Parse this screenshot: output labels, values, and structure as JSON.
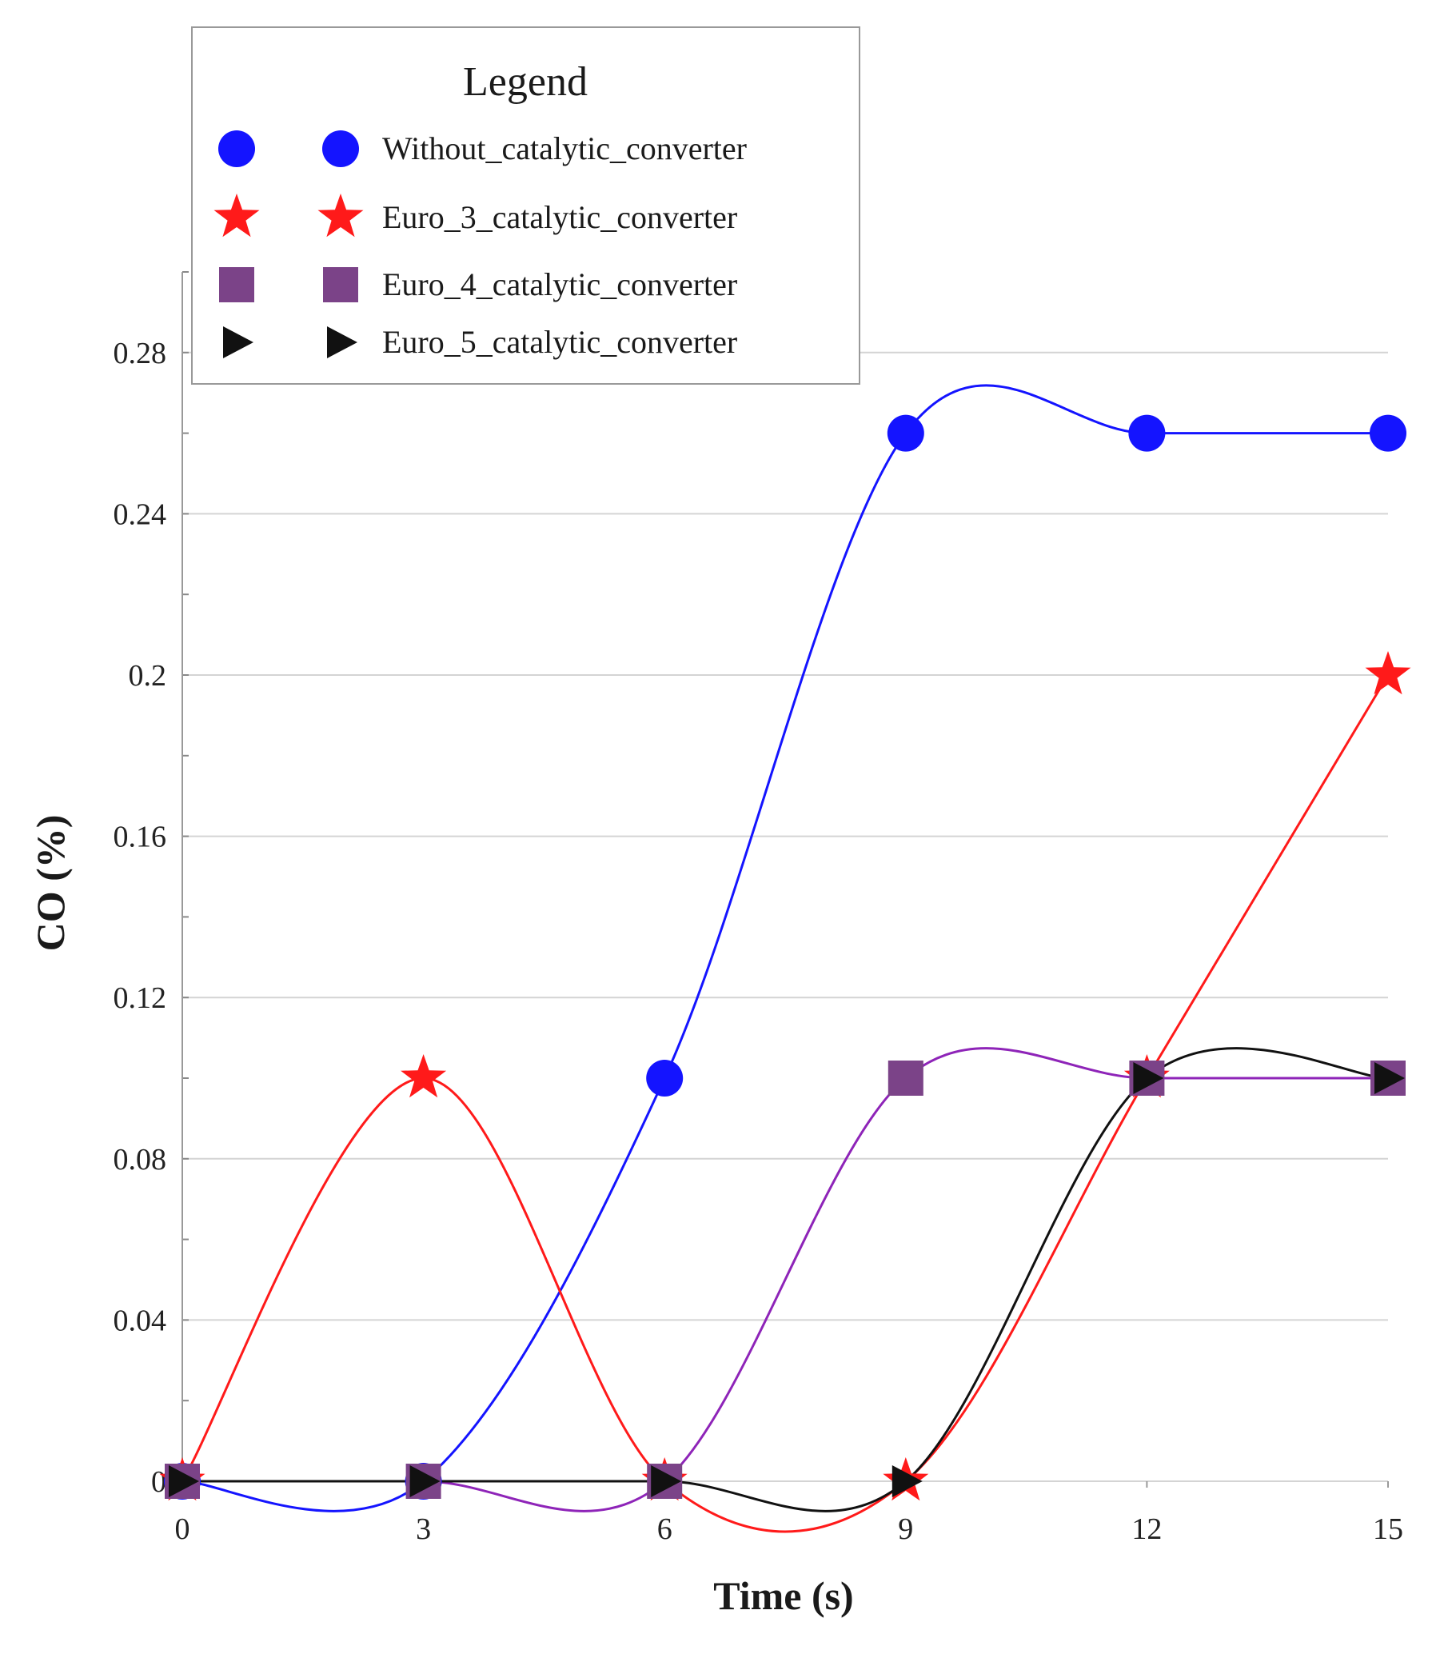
{
  "chart_data": {
    "type": "line",
    "title": "",
    "xlabel": "Time (s)",
    "ylabel": "CO (%)",
    "x": [
      0,
      3,
      6,
      9,
      12,
      15
    ],
    "xticks": [
      "0",
      "3",
      "6",
      "9",
      "12",
      "15"
    ],
    "yticks": [
      "0",
      "0.04",
      "0.08",
      "0.12",
      "0.16",
      "0.2",
      "0.24",
      "0.28"
    ],
    "xlim": [
      0,
      15
    ],
    "ylim": [
      0,
      0.3
    ],
    "grid": true,
    "legend": {
      "title": "Legend",
      "placement": "top-left"
    },
    "series": [
      {
        "name": "Without_catalytic_converter",
        "color": "#1414ff",
        "marker": "circle",
        "values": [
          0,
          0,
          0.1,
          0.26,
          0.26,
          0.26
        ]
      },
      {
        "name": "Euro_3_catalytic_converter",
        "color": "#ff1a1a",
        "marker": "star",
        "values": [
          0,
          0.1,
          0,
          0,
          0.1,
          0.2
        ]
      },
      {
        "name": "Euro_4_catalytic_converter",
        "color": "#8e24b8",
        "markerColor": "#7b4388",
        "marker": "square",
        "values": [
          0,
          0,
          0,
          0.1,
          0.1,
          0.1
        ]
      },
      {
        "name": "Euro_5_catalytic_converter",
        "color": "#111111",
        "marker": "triangle",
        "values": [
          0,
          0,
          0,
          0,
          0.1,
          0.1
        ]
      }
    ]
  }
}
